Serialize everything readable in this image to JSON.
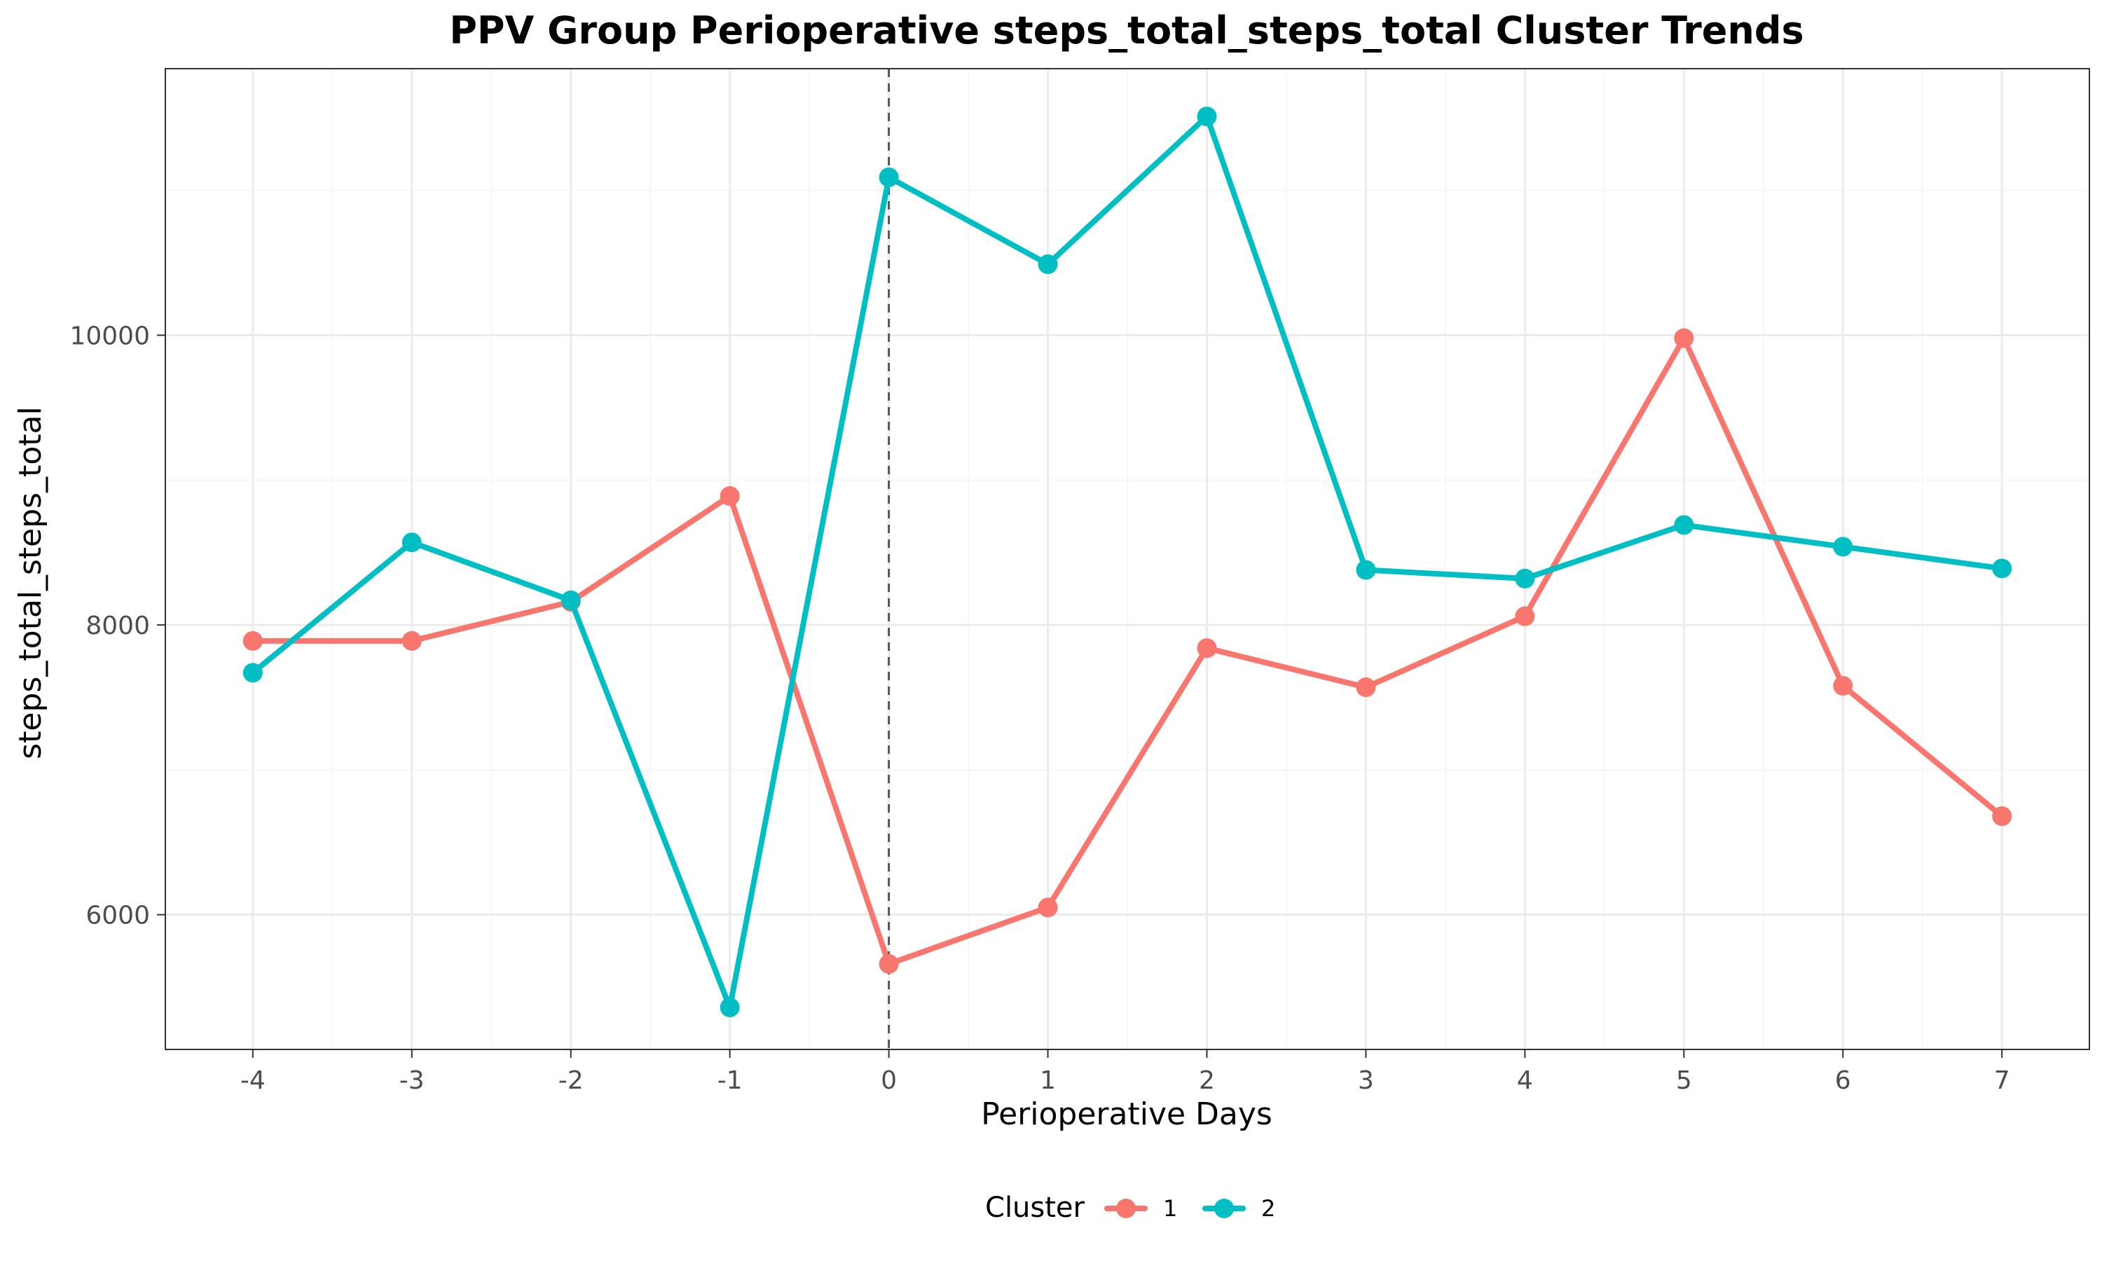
{
  "chart_data": {
    "type": "line",
    "title": "PPV Group Perioperative steps_total_steps_total Cluster Trends",
    "xlabel": "Perioperative Days",
    "ylabel": "steps_total_steps_total",
    "x": [
      -4,
      -3,
      -2,
      -1,
      0,
      1,
      2,
      3,
      4,
      5,
      6,
      7
    ],
    "xlim": [
      -4.55,
      7.55
    ],
    "ylim": [
      5070,
      11840
    ],
    "y_ticks": [
      6000,
      8000,
      10000
    ],
    "y_minor_ticks": [
      7000,
      9000,
      11000
    ],
    "grid": true,
    "reference_line": {
      "x": 0,
      "style": "dashed"
    },
    "legend": {
      "title": "Cluster",
      "position": "bottom"
    },
    "series": [
      {
        "name": "1",
        "color": "#F8766D",
        "values": [
          7890,
          7890,
          8160,
          8890,
          5660,
          6050,
          7840,
          7570,
          8060,
          9980,
          7580,
          6680
        ]
      },
      {
        "name": "2",
        "color": "#00BFC4",
        "values": [
          7670,
          8570,
          8170,
          5360,
          11090,
          10490,
          11510,
          8380,
          8320,
          8690,
          8540,
          8390
        ]
      }
    ]
  }
}
